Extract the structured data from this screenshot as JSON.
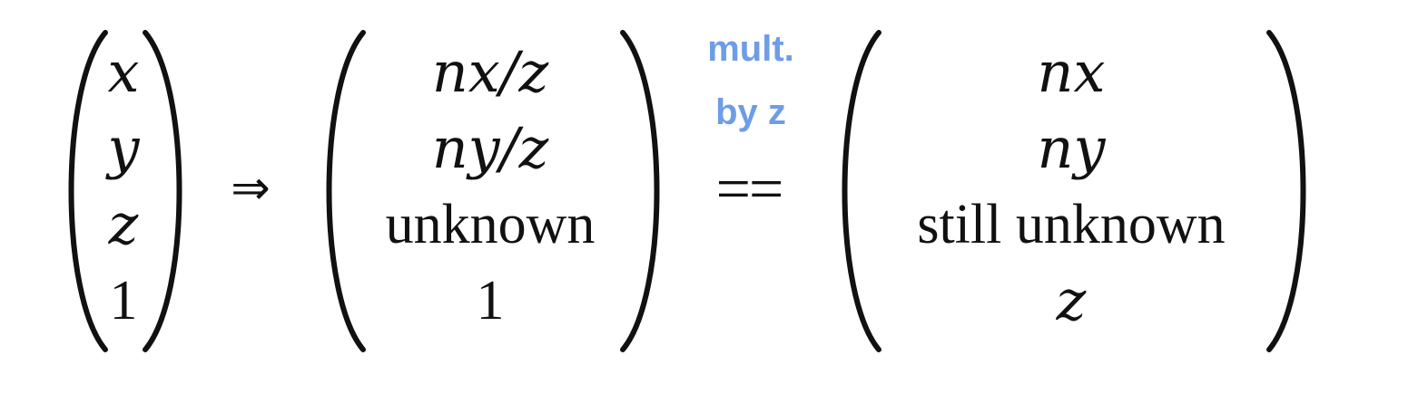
{
  "vector_left": {
    "rows": [
      "x",
      "y",
      "z",
      "1"
    ]
  },
  "implies_symbol": "⇒",
  "vector_middle": {
    "rows": [
      "nx/z",
      "ny/z",
      "unknown",
      "1"
    ]
  },
  "annotation": {
    "line1": "mult.",
    "line2": "by z",
    "color": "#6d9de6"
  },
  "equals_symbol": "==",
  "vector_right": {
    "rows": [
      "nx",
      "ny",
      "still unknown",
      "z"
    ]
  }
}
